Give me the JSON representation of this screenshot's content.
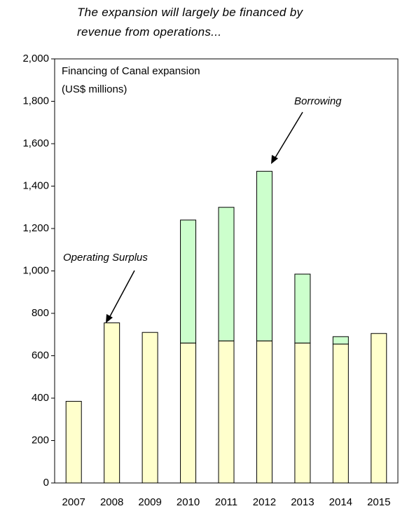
{
  "chart_data": {
    "type": "bar",
    "stacked": true,
    "subtitle": "The expansion will largely be financed by revenue from operations...",
    "title": "Financing of Canal expansion",
    "ylabel": "(US$ millions)",
    "categories": [
      "2007",
      "2008",
      "2009",
      "2010",
      "2011",
      "2012",
      "2013",
      "2014",
      "2015"
    ],
    "series": [
      {
        "name": "Operating Surplus",
        "color": "#ffffcc",
        "values": [
          385,
          755,
          710,
          660,
          670,
          670,
          660,
          655,
          705
        ]
      },
      {
        "name": "Borrowing",
        "color": "#ccffcc",
        "values": [
          0,
          0,
          0,
          580,
          630,
          800,
          325,
          35,
          0
        ]
      }
    ],
    "ylim": [
      0,
      2000
    ],
    "yticks": [
      0,
      200,
      400,
      600,
      800,
      {
        "value": 1000,
        "label": "1,000"
      },
      {
        "value": 1200,
        "label": "1,200"
      },
      {
        "value": 1400,
        "label": "1,400"
      },
      {
        "value": 1600,
        "label": "1,600"
      },
      {
        "value": 1800,
        "label": "1,800"
      },
      {
        "value": 2000,
        "label": "2,000"
      }
    ],
    "grid": false
  }
}
